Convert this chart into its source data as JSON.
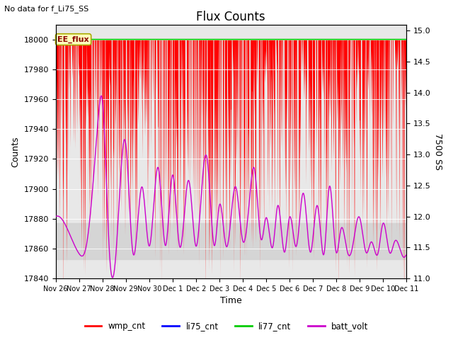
{
  "title": "Flux Counts",
  "subtitle": "No data for f_Li75_SS",
  "xlabel": "Time",
  "ylabel_left": "Counts",
  "ylabel_right": "7500 SS",
  "ylim_left": [
    17840,
    18010
  ],
  "ylim_right": [
    11.0,
    15.1
  ],
  "annotation_text": "EE_flux",
  "x_tick_labels": [
    "Nov 26",
    "Nov 27",
    "Nov 28",
    "Nov 29",
    "Nov 30",
    "Dec 1",
    "Dec 2",
    "Dec 3",
    "Dec 4",
    "Dec 5",
    "Dec 6",
    "Dec 7",
    "Dec 8",
    "Dec 9",
    "Dec 10",
    "Dec 11"
  ],
  "plot_bg_color": "#e8e8e8",
  "wmp_color": "#ff0000",
  "li75_color": "#0000ff",
  "li77_color": "#00cc00",
  "batt_color": "#cc00cc",
  "legend_labels": [
    "wmp_cnt",
    "li75_cnt",
    "li77_cnt",
    "batt_volt"
  ],
  "seed": 42
}
